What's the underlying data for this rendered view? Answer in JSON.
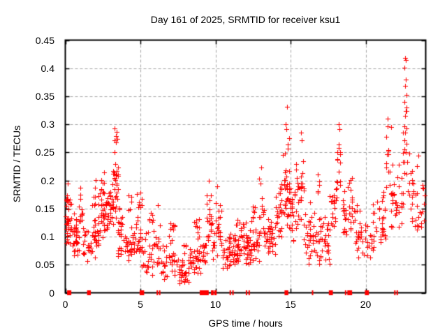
{
  "title": "Day 161 of 2025, SRMTID for receiver ksu1",
  "xaxis": {
    "label": "GPS time / hours",
    "ticks": [
      0,
      5,
      10,
      15,
      20
    ],
    "tick_labels": [
      "0",
      "5",
      "10",
      "15",
      "20"
    ],
    "range": [
      0,
      24
    ]
  },
  "yaxis": {
    "label": "SRMTID / TECUs",
    "ticks": [
      0,
      0.05,
      0.1,
      0.15,
      0.2,
      0.25,
      0.3,
      0.35,
      0.4,
      0.45
    ],
    "tick_labels": [
      "0",
      "0.05",
      "0.1",
      "0.15",
      "0.2",
      "0.25",
      "0.3",
      "0.35",
      "0.4",
      "0.45"
    ],
    "range": [
      0,
      0.45
    ]
  },
  "colors": {
    "marker": "#ff0000",
    "grid": "#a6a6a6",
    "border": "#000000",
    "background": "#ffffff",
    "text": "#000000"
  },
  "chart_data": {
    "type": "scatter",
    "title": "Day 161 of 2025, SRMTID for receiver ksu1",
    "xlabel": "GPS time / hours",
    "ylabel": "SRMTID / TECUs",
    "xlim": [
      0,
      24
    ],
    "ylim": [
      0,
      0.45
    ],
    "grid": true,
    "legend": "none",
    "marker": "plus",
    "marker_color": "#ff0000",
    "seed": 1337,
    "x_quantum_hours": 0.1,
    "clusters_format": "[x_start_hours, x_end_hours, point_count, y_min_TECU, y_max_TECU]",
    "clusters": [
      [
        0.0,
        0.45,
        34,
        0.08,
        0.19
      ],
      [
        0.05,
        0.35,
        6,
        0.15,
        0.19
      ],
      [
        0.45,
        0.8,
        16,
        0.05,
        0.13
      ],
      [
        0.6,
        1.15,
        24,
        0.07,
        0.17
      ],
      [
        0.9,
        1.1,
        5,
        0.13,
        0.2
      ],
      [
        1.15,
        1.7,
        20,
        0.05,
        0.13
      ],
      [
        1.7,
        2.2,
        26,
        0.06,
        0.17
      ],
      [
        1.85,
        2.05,
        6,
        0.14,
        0.21
      ],
      [
        2.2,
        2.85,
        38,
        0.09,
        0.2
      ],
      [
        2.35,
        2.6,
        8,
        0.16,
        0.22
      ],
      [
        2.85,
        3.2,
        24,
        0.1,
        0.22
      ],
      [
        3.2,
        3.5,
        28,
        0.13,
        0.29
      ],
      [
        3.5,
        4.05,
        28,
        0.06,
        0.17
      ],
      [
        4.05,
        4.6,
        22,
        0.05,
        0.12
      ],
      [
        4.2,
        4.4,
        5,
        0.13,
        0.185
      ],
      [
        4.6,
        5.0,
        18,
        0.05,
        0.15
      ],
      [
        4.78,
        4.95,
        6,
        0.14,
        0.19
      ],
      [
        5.0,
        5.2,
        12,
        0.04,
        0.2
      ],
      [
        5.2,
        6.0,
        26,
        0.03,
        0.12
      ],
      [
        5.5,
        5.95,
        6,
        0.12,
        0.17
      ],
      [
        6.0,
        6.3,
        13,
        0.04,
        0.17
      ],
      [
        6.3,
        7.5,
        38,
        0.02,
        0.11
      ],
      [
        6.9,
        7.3,
        7,
        0.1,
        0.13
      ],
      [
        7.5,
        8.2,
        28,
        0.015,
        0.065
      ],
      [
        7.8,
        8.15,
        5,
        0.07,
        0.11
      ],
      [
        8.2,
        9.0,
        32,
        0.03,
        0.11
      ],
      [
        8.5,
        8.95,
        8,
        0.1,
        0.155
      ],
      [
        9.0,
        9.4,
        16,
        0.05,
        0.12
      ],
      [
        9.4,
        9.75,
        20,
        0.08,
        0.2
      ],
      [
        9.75,
        10.0,
        10,
        0.05,
        0.15
      ],
      [
        10.0,
        10.4,
        20,
        0.06,
        0.19
      ],
      [
        10.4,
        11.0,
        28,
        0.04,
        0.11
      ],
      [
        11.0,
        12.0,
        50,
        0.05,
        0.12
      ],
      [
        11.3,
        11.9,
        7,
        0.11,
        0.14
      ],
      [
        12.0,
        12.9,
        42,
        0.05,
        0.13
      ],
      [
        12.4,
        12.65,
        6,
        0.13,
        0.16
      ],
      [
        12.9,
        13.25,
        16,
        0.07,
        0.22
      ],
      [
        13.25,
        14.0,
        36,
        0.06,
        0.14
      ],
      [
        14.0,
        14.5,
        28,
        0.09,
        0.235
      ],
      [
        14.5,
        15.0,
        38,
        0.11,
        0.3
      ],
      [
        15.0,
        15.35,
        18,
        0.08,
        0.22
      ],
      [
        15.35,
        15.9,
        28,
        0.1,
        0.285
      ],
      [
        15.9,
        16.5,
        28,
        0.05,
        0.18
      ],
      [
        16.5,
        17.05,
        22,
        0.04,
        0.16
      ],
      [
        16.75,
        16.95,
        5,
        0.17,
        0.225
      ],
      [
        17.05,
        17.6,
        26,
        0.05,
        0.15
      ],
      [
        17.6,
        18.05,
        20,
        0.08,
        0.25
      ],
      [
        18.05,
        18.35,
        15,
        0.16,
        0.3
      ],
      [
        18.35,
        18.75,
        16,
        0.09,
        0.2
      ],
      [
        18.75,
        19.3,
        20,
        0.1,
        0.235
      ],
      [
        19.3,
        20.7,
        50,
        0.06,
        0.165
      ],
      [
        20.7,
        21.4,
        28,
        0.08,
        0.2
      ],
      [
        21.35,
        21.8,
        14,
        0.18,
        0.31
      ],
      [
        21.65,
        22.3,
        26,
        0.1,
        0.25
      ],
      [
        22.3,
        22.5,
        8,
        0.12,
        0.22
      ],
      [
        22.45,
        22.9,
        20,
        0.15,
        0.34
      ],
      [
        22.9,
        23.4,
        18,
        0.1,
        0.25
      ],
      [
        23.4,
        23.92,
        16,
        0.1,
        0.21
      ]
    ],
    "outliers_format": "[x_hours, y_TECU]",
    "outliers": [
      [
        0.14,
        0.195
      ],
      [
        3.27,
        0.293
      ],
      [
        3.42,
        0.287
      ],
      [
        3.35,
        0.279
      ],
      [
        9.55,
        0.2
      ],
      [
        10.12,
        0.19
      ],
      [
        13.05,
        0.223
      ],
      [
        14.75,
        0.331
      ],
      [
        14.66,
        0.3
      ],
      [
        14.73,
        0.291
      ],
      [
        15.7,
        0.285
      ],
      [
        15.75,
        0.272
      ],
      [
        18.2,
        0.3
      ],
      [
        18.25,
        0.291
      ],
      [
        21.48,
        0.31
      ],
      [
        21.45,
        0.296
      ],
      [
        22.62,
        0.418
      ],
      [
        22.66,
        0.414
      ],
      [
        22.6,
        0.401
      ],
      [
        22.68,
        0.38
      ],
      [
        22.64,
        0.368
      ],
      [
        22.7,
        0.352
      ],
      [
        22.58,
        0.34
      ],
      [
        22.72,
        0.33
      ],
      [
        22.61,
        0.315
      ],
      [
        23.5,
        0.244
      ]
    ],
    "zero_markers_format": "[x_start_hours, x_end_hours] red squares drawn at y=0 on the x-axis",
    "zero_markers": [
      [
        0.12,
        0.4
      ],
      [
        1.45,
        1.7
      ],
      [
        4.95,
        5.25
      ],
      [
        6.08,
        6.16
      ],
      [
        6.24,
        6.32
      ],
      [
        8.95,
        9.55
      ],
      [
        9.7,
        9.88
      ],
      [
        9.92,
        10.08
      ],
      [
        10.94,
        11.02
      ],
      [
        11.12,
        11.2
      ],
      [
        12.02,
        12.1
      ],
      [
        12.2,
        12.28
      ],
      [
        14.6,
        14.85
      ],
      [
        16.42,
        16.5
      ],
      [
        17.55,
        17.82
      ],
      [
        18.62,
        18.7
      ],
      [
        18.78,
        19.1
      ],
      [
        19.95,
        20.22
      ],
      [
        21.9,
        21.98
      ],
      [
        22.06,
        22.14
      ]
    ]
  }
}
